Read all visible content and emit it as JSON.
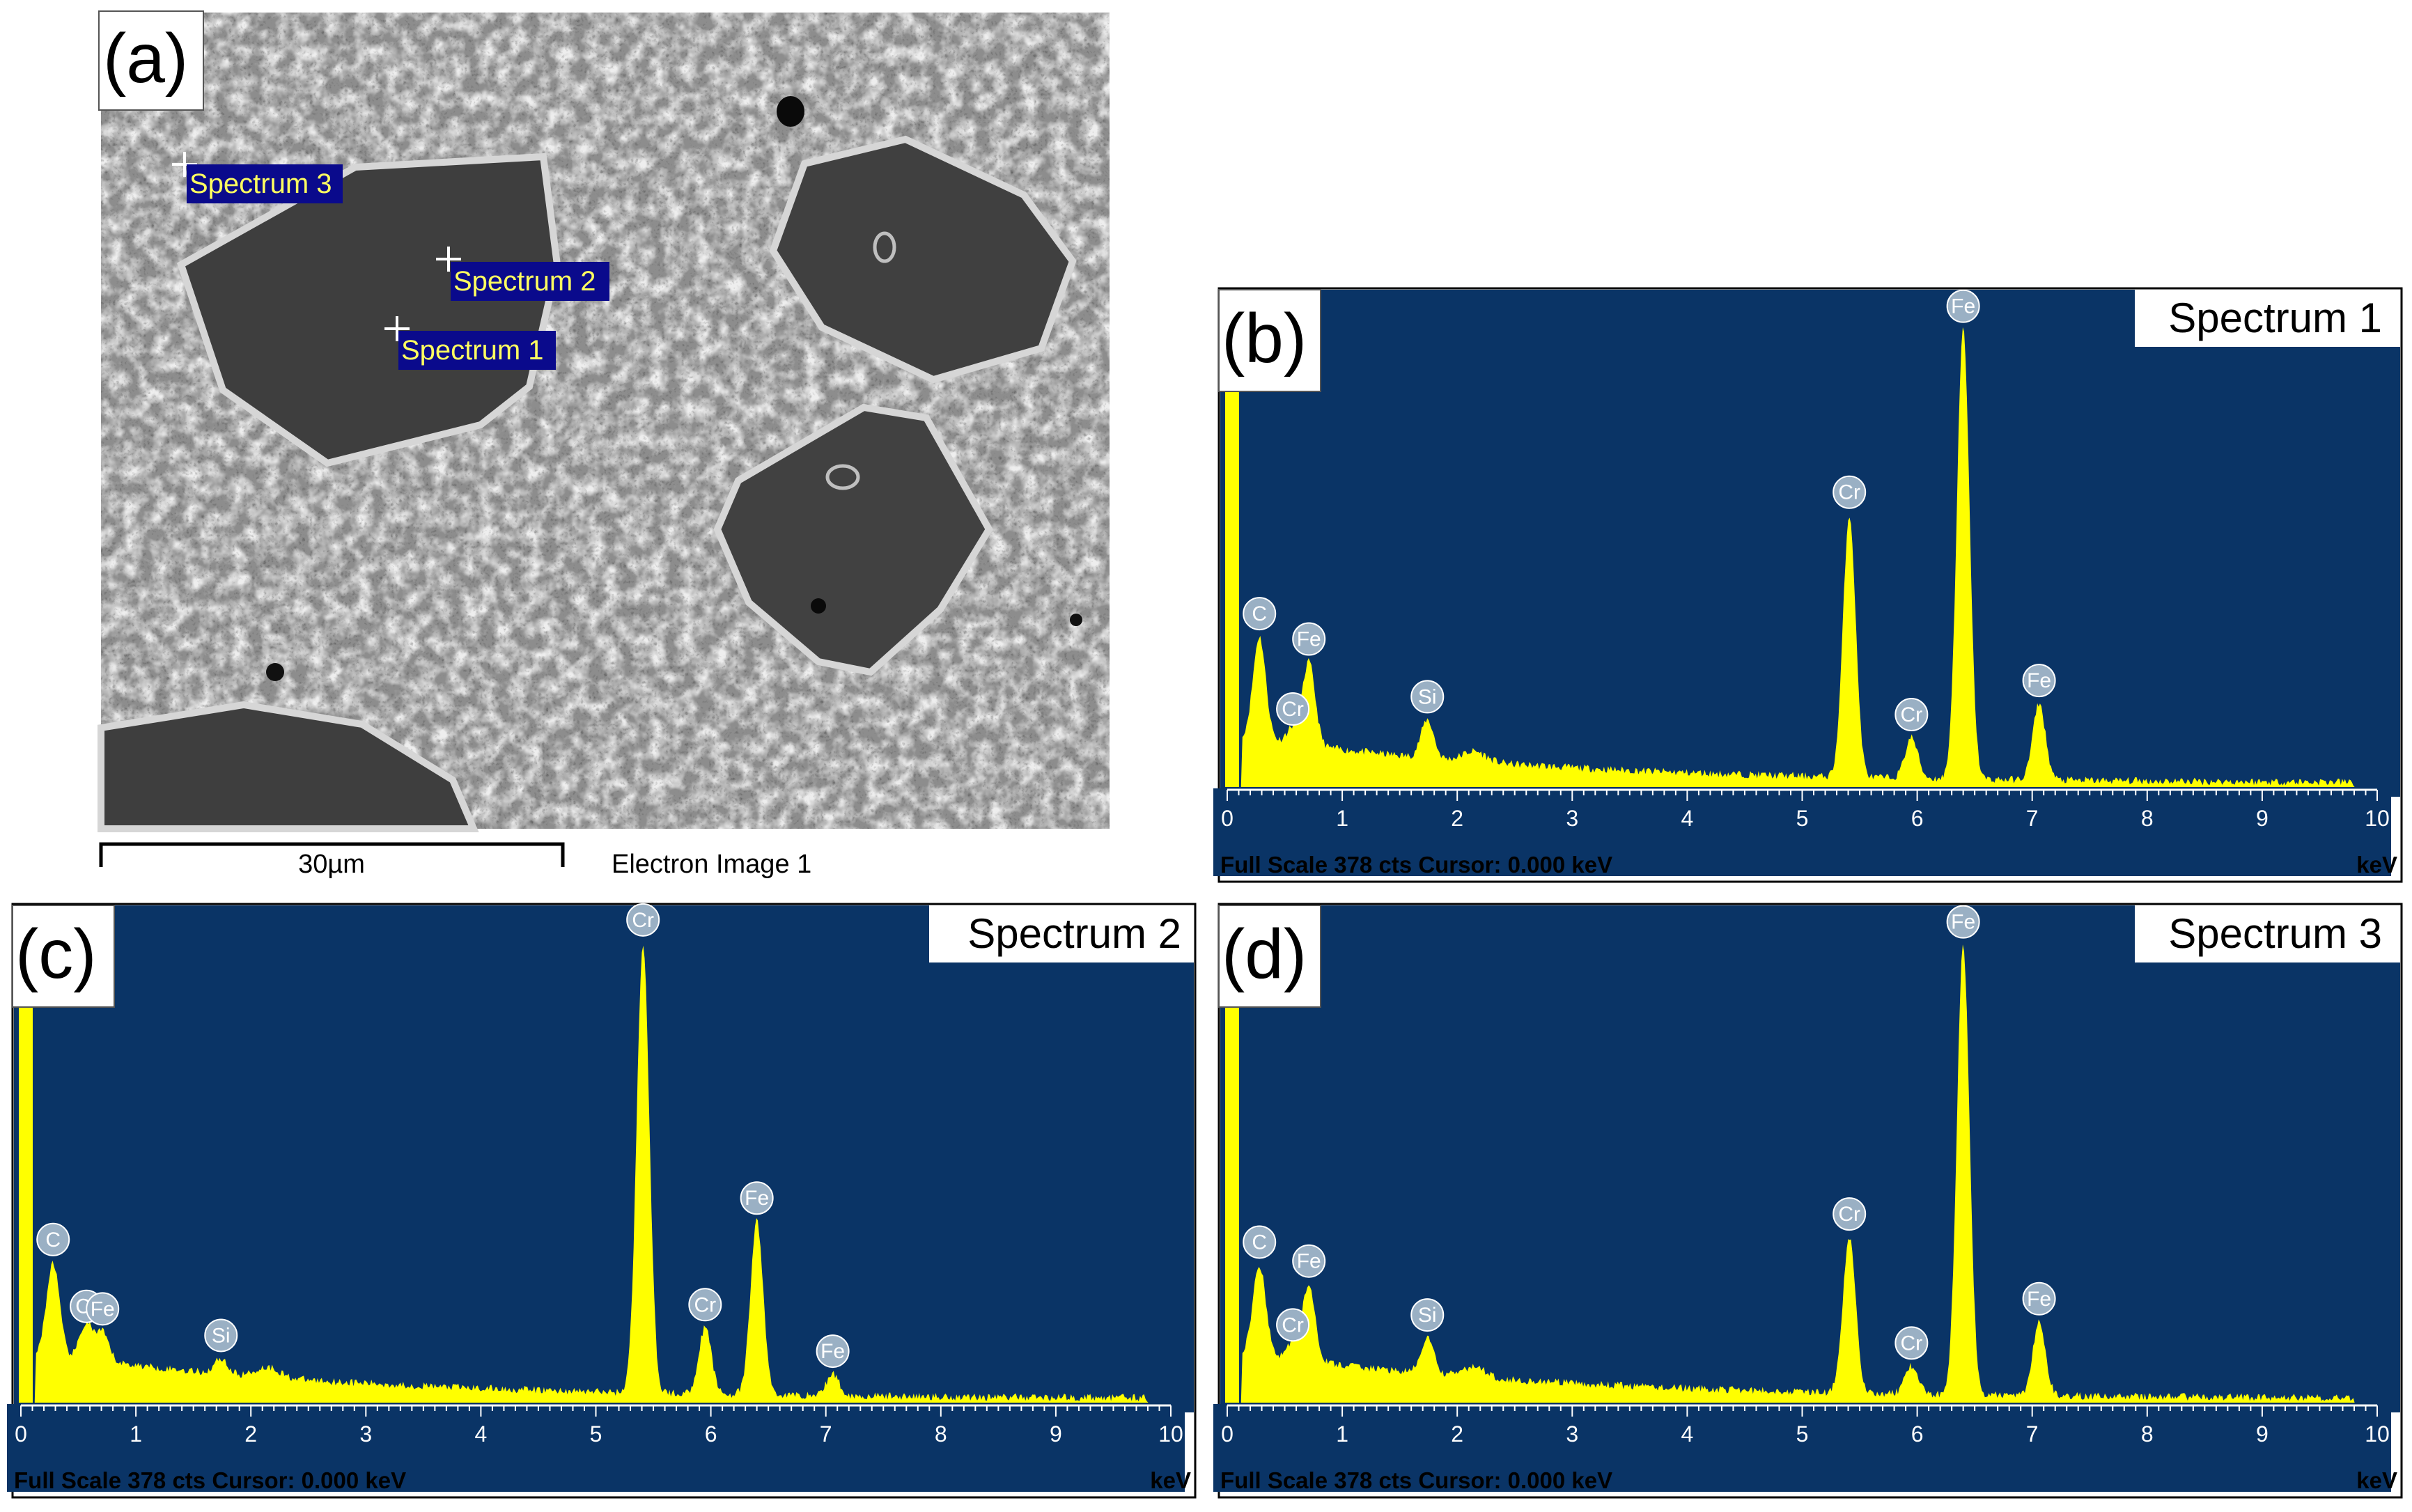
{
  "sem": {
    "panel_label": "(a)",
    "spot_labels": [
      "Spectrum 3",
      "Spectrum 2",
      "Spectrum 1"
    ],
    "scale_bar_label": "30µm",
    "image_caption": "Electron Image 1",
    "colors": {
      "tag_bg": "#0a0a8c",
      "tag_text": "#ffff60"
    }
  },
  "chart_data": [
    {
      "type": "area",
      "panel_label": "(b)",
      "title": "Spectrum 1",
      "xlabel": "keV",
      "xlim": [
        0,
        10
      ],
      "xticks": [
        0,
        1,
        2,
        3,
        4,
        5,
        6,
        7,
        8,
        9,
        10
      ],
      "footer": "Full Scale 378 cts  Cursor: 0.000 keV",
      "colors": {
        "background": "#0a3466",
        "fill": "#ffff00"
      },
      "ylim": [
        0,
        378
      ],
      "peaks": [
        {
          "element": "C",
          "x": 0.28,
          "y": 80
        },
        {
          "element": "Cr",
          "x": 0.57,
          "y": 12
        },
        {
          "element": "Fe",
          "x": 0.71,
          "y": 65
        },
        {
          "element": "Si",
          "x": 1.74,
          "y": 30
        },
        {
          "element": "Cr",
          "x": 5.41,
          "y": 205
        },
        {
          "element": "Cr",
          "x": 5.95,
          "y": 32
        },
        {
          "element": "Fe",
          "x": 6.4,
          "y": 352
        },
        {
          "element": "Fe",
          "x": 7.06,
          "y": 60
        }
      ]
    },
    {
      "type": "area",
      "panel_label": "(c)",
      "title": "Spectrum 2",
      "xlabel": "keV",
      "xlim": [
        0,
        10
      ],
      "xticks": [
        0,
        1,
        2,
        3,
        4,
        5,
        6,
        7,
        8,
        9,
        10
      ],
      "footer": "Full Scale 378 cts  Cursor: 0.000 keV",
      "colors": {
        "background": "#0a3466",
        "fill": "#ffff00"
      },
      "ylim": [
        0,
        378
      ],
      "peaks": [
        {
          "element": "C",
          "x": 0.28,
          "y": 72
        },
        {
          "element": "Cr",
          "x": 0.57,
          "y": 28
        },
        {
          "element": "Fe",
          "x": 0.71,
          "y": 22
        },
        {
          "element": "Si",
          "x": 1.74,
          "y": 12
        },
        {
          "element": "Cr",
          "x": 5.41,
          "y": 352
        },
        {
          "element": "Cr",
          "x": 5.95,
          "y": 52
        },
        {
          "element": "Fe",
          "x": 6.4,
          "y": 136
        },
        {
          "element": "Fe",
          "x": 7.06,
          "y": 17
        }
      ]
    },
    {
      "type": "area",
      "panel_label": "(d)",
      "title": "Spectrum 3",
      "xlabel": "keV",
      "xlim": [
        0,
        10
      ],
      "xticks": [
        0,
        1,
        2,
        3,
        4,
        5,
        6,
        7,
        8,
        9,
        10
      ],
      "footer": "Full Scale 378 cts  Cursor: 0.000 keV",
      "colors": {
        "background": "#0a3466",
        "fill": "#ffff00"
      },
      "ylim": [
        0,
        378
      ],
      "peaks": [
        {
          "element": "C",
          "x": 0.28,
          "y": 70
        },
        {
          "element": "Cr",
          "x": 0.57,
          "y": 12
        },
        {
          "element": "Fe",
          "x": 0.71,
          "y": 60
        },
        {
          "element": "Si",
          "x": 1.74,
          "y": 28
        },
        {
          "element": "Cr",
          "x": 5.41,
          "y": 122
        },
        {
          "element": "Cr",
          "x": 5.95,
          "y": 22
        },
        {
          "element": "Fe",
          "x": 6.4,
          "y": 352
        },
        {
          "element": "Fe",
          "x": 7.06,
          "y": 58
        }
      ]
    }
  ]
}
